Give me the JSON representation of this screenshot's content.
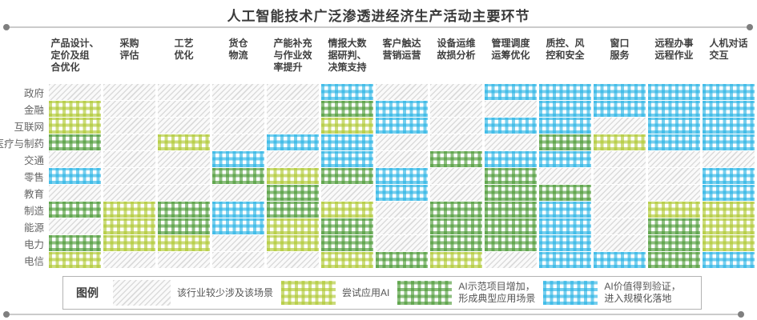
{
  "title": "人工智能技术广泛渗透进经济生产活动主要环节",
  "legend": {
    "label": "图例",
    "items": [
      {
        "level": 0,
        "text": "该行业较少涉及该场景"
      },
      {
        "level": 1,
        "text": "尝试应用AI"
      },
      {
        "level": 2,
        "text": "AI示范项目增加，\n形成典型应用场景"
      },
      {
        "level": 3,
        "text": "AI价值得到验证，\n进入规模化落地"
      }
    ]
  },
  "colors": {
    "gray_hatch": "#d9d9d9",
    "light_green": "#adc72d",
    "dark_green": "#489832",
    "blue": "#24b2e4",
    "title_text": "#3a3a3a",
    "rule_line": "#cbcbcb",
    "rule_dot": "#7f7f7f"
  },
  "chart_data": {
    "type": "heatmap",
    "title": "人工智能技术广泛渗透进经济生产活动主要环节",
    "columns": [
      "产品设计、\n定价及组\n合优化",
      "采购\n评估",
      "工艺\n优化",
      "货仓\n物流",
      "产能补充\n与作业效\n率提升",
      "情报大数\n据研判、\n决策支持",
      "客户触达\n营销运营",
      "设备运维\n故损分析",
      "管理调度\n运筹优化",
      "质控、风\n控和安全",
      "窗口\n服务",
      "远程办事\n远程作业",
      "人机对话\n交互"
    ],
    "rows": [
      "政府",
      "金融",
      "互联网",
      "医疗与制药",
      "交通",
      "零售",
      "教育",
      "制造",
      "能源",
      "电力",
      "电信"
    ],
    "level_labels": [
      "该行业较少涉及该场景",
      "尝试应用AI",
      "AI示范项目增加，形成典型应用场景",
      "AI价值得到验证，进入规模化落地"
    ],
    "values": [
      [
        0,
        0,
        0,
        0,
        0,
        3,
        0,
        0,
        3,
        3,
        3,
        3,
        3
      ],
      [
        1,
        0,
        0,
        0,
        0,
        2,
        3,
        0,
        0,
        3,
        3,
        3,
        3
      ],
      [
        1,
        0,
        0,
        0,
        0,
        1,
        3,
        0,
        3,
        3,
        0,
        3,
        3
      ],
      [
        2,
        0,
        1,
        0,
        3,
        3,
        0,
        0,
        0,
        2,
        1,
        3,
        3
      ],
      [
        0,
        0,
        0,
        3,
        0,
        3,
        0,
        2,
        3,
        3,
        0,
        0,
        0
      ],
      [
        3,
        0,
        0,
        2,
        1,
        2,
        3,
        0,
        2,
        0,
        0,
        0,
        3
      ],
      [
        0,
        0,
        0,
        0,
        2,
        0,
        3,
        0,
        2,
        2,
        0,
        0,
        3
      ],
      [
        2,
        1,
        2,
        3,
        2,
        1,
        0,
        2,
        2,
        3,
        0,
        1,
        1
      ],
      [
        0,
        1,
        2,
        3,
        1,
        2,
        0,
        2,
        2,
        3,
        0,
        2,
        1
      ],
      [
        2,
        1,
        1,
        0,
        1,
        2,
        0,
        2,
        2,
        3,
        0,
        2,
        1
      ],
      [
        1,
        0,
        0,
        0,
        0,
        1,
        2,
        1,
        0,
        3,
        3,
        2,
        3
      ]
    ]
  }
}
